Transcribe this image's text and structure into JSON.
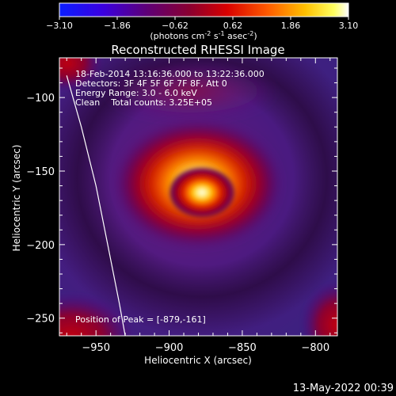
{
  "colorbar": {
    "ticks": [
      "-3.10",
      "-1.86",
      "-0.62",
      "0.62",
      "1.86",
      "3.10"
    ],
    "units_prefix": "(photons cm",
    "units_exp1": "-2",
    "units_mid": " s",
    "units_exp2": "-1",
    "units_mid2": " asec",
    "units_exp3": "-2",
    "units_suffix": ")"
  },
  "colors": {
    "background": "#000000",
    "axis": "#ffffff",
    "limb_line": "#ffffff"
  },
  "footer": {
    "date": "13-May-2022 00:39"
  },
  "chart_data": {
    "type": "heatmap",
    "title": "Reconstructed RHESSI Image",
    "xlabel": "Heliocentric X (arcsec)",
    "ylabel": "Heliocentric Y (arcsec)",
    "xlim": [
      -975,
      -785
    ],
    "ylim": [
      -262,
      -73
    ],
    "xticks": [
      -950,
      -900,
      -850,
      -800
    ],
    "xtick_labels": [
      "−950",
      "−900",
      "−850",
      "−800"
    ],
    "yticks": [
      -100,
      -150,
      -200,
      -250
    ],
    "ytick_labels": [
      "−100",
      "−150",
      "−200",
      "−250"
    ],
    "colorscale": "IDL rainbow-hot (blue-purple-red-orange-yellow-white)",
    "colorbar_range": [
      -3.1,
      3.1
    ],
    "annotations": [
      "18-Feb-2014 13:16:36.000 to 13:22:36.000",
      "Detectors: 3F 4F 5F 6F 7F 8F, Att 0",
      "Energy Range: 3.0 - 6.0 keV",
      "Clean    Total counts: 3.25E+05"
    ],
    "peak_label": "Position of Peak = [-879,-161]",
    "peak": {
      "x": -879,
      "y": -161
    },
    "limb_curve": [
      [
        -970,
        -85
      ],
      [
        -960,
        -120
      ],
      [
        -950,
        -160
      ],
      [
        -942,
        -200
      ],
      [
        -934,
        -240
      ],
      [
        -930,
        -262
      ]
    ]
  }
}
